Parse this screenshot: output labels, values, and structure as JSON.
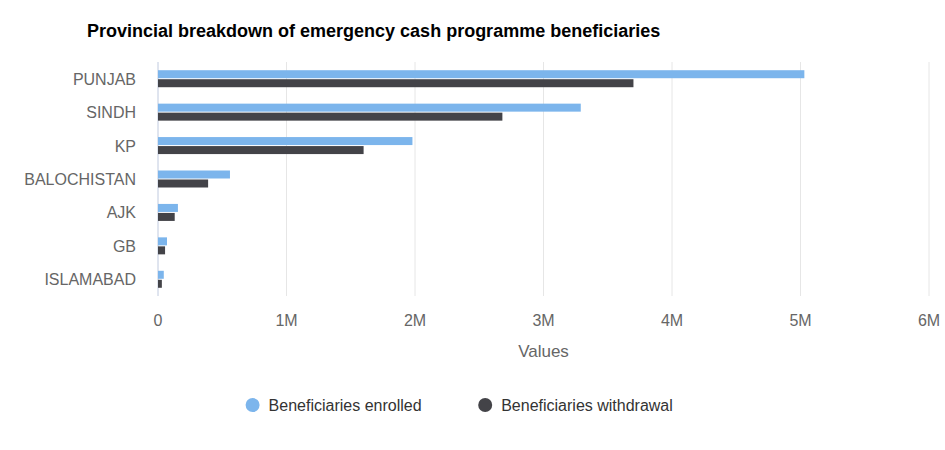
{
  "chart_data": {
    "type": "bar",
    "orientation": "horizontal",
    "title": "Provincial breakdown of emergency cash programme beneficiaries",
    "x_label": "Values",
    "categories": [
      "PUNJAB",
      "SINDH",
      "KP",
      "BALOCHISTAN",
      "AJK",
      "GB",
      "ISLAMABAD"
    ],
    "series": [
      {
        "name": "Beneficiaries enrolled",
        "color": "#7cb5ec",
        "values": [
          5030000,
          3290000,
          1980000,
          560000,
          155000,
          70000,
          45000
        ]
      },
      {
        "name": "Beneficiaries withdrawal",
        "color": "#434348",
        "values": [
          3700000,
          2680000,
          1600000,
          390000,
          130000,
          55000,
          30000
        ]
      }
    ],
    "xlim": [
      0,
      6000000
    ],
    "xticks": [
      0,
      {
        "value": 1000000,
        "label": "1M"
      },
      {
        "value": 2000000,
        "label": "2M"
      },
      {
        "value": 3000000,
        "label": "3M"
      },
      {
        "value": 4000000,
        "label": "4M"
      },
      {
        "value": 5000000,
        "label": "5M"
      },
      {
        "value": 6000000,
        "label": "6M"
      }
    ],
    "grid": true,
    "legend": "bottom"
  }
}
